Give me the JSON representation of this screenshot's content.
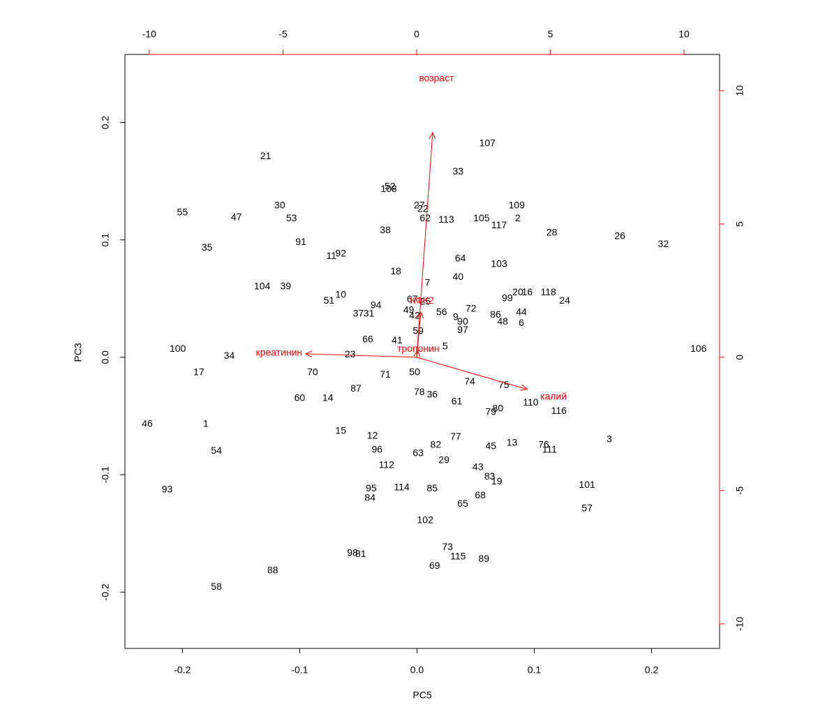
{
  "chart_data": {
    "type": "biplot",
    "xlabel": "PC5",
    "ylabel": "PC3",
    "xlim": [
      -0.249,
      0.258
    ],
    "ylim": [
      -0.248,
      0.258
    ],
    "xticks": [
      -0.2,
      -0.1,
      {
        "value": 0,
        "label": "0.0"
      },
      0.1,
      0.2
    ],
    "yticks": [
      -0.2,
      -0.1,
      {
        "value": 0,
        "label": "0.0"
      },
      0.1,
      0.2
    ],
    "x2lim": [
      -10.91,
      11.33
    ],
    "y2lim": [
      -10.92,
      11.36
    ],
    "x2ticks": [
      -10,
      -5,
      0,
      5,
      10
    ],
    "y2ticks": [
      -10,
      -5,
      0,
      5,
      10
    ],
    "point_color": "#000000",
    "loading_color": "#ff0000",
    "points": {
      "labels": [
        21,
        107,
        33,
        52,
        108,
        27,
        22,
        109,
        55,
        47,
        30,
        53,
        62,
        113,
        105,
        2,
        117,
        28,
        26,
        32,
        38,
        91,
        35,
        11,
        92,
        64,
        103,
        18,
        40,
        7,
        104,
        39,
        20,
        16,
        118,
        99,
        24,
        10,
        51,
        67,
        25,
        94,
        72,
        49,
        37,
        31,
        56,
        44,
        86,
        42,
        9,
        90,
        48,
        6,
        97,
        59,
        66,
        41,
        5,
        106,
        100,
        34,
        23,
        17,
        70,
        71,
        50,
        74,
        75,
        87,
        78,
        36,
        60,
        14,
        61,
        110,
        80,
        79,
        116,
        46,
        1,
        15,
        12,
        77,
        3,
        13,
        82,
        45,
        76,
        111,
        54,
        96,
        63,
        29,
        112,
        43,
        83,
        19,
        101,
        93,
        114,
        95,
        85,
        68,
        84,
        65,
        57,
        102,
        73,
        98,
        81,
        115,
        89,
        69,
        88,
        58
      ],
      "x": [
        -0.129,
        0.06,
        0.035,
        -0.023,
        -0.024,
        0.002,
        0.005,
        0.085,
        -0.2,
        -0.154,
        -0.117,
        -0.107,
        0.007,
        0.025,
        0.055,
        0.086,
        0.07,
        0.115,
        0.173,
        0.21,
        -0.027,
        -0.099,
        -0.179,
        -0.073,
        -0.065,
        0.037,
        0.07,
        -0.018,
        0.035,
        0.009,
        -0.132,
        -0.112,
        0.086,
        0.094,
        0.112,
        0.077,
        0.126,
        -0.065,
        -0.075,
        -0.004,
        0.007,
        -0.035,
        0.046,
        -0.007,
        -0.05,
        -0.041,
        0.021,
        0.089,
        0.067,
        -0.002,
        0.033,
        0.039,
        0.073,
        0.089,
        0.039,
        0.001,
        -0.042,
        -0.017,
        0.024,
        0.24,
        -0.204,
        -0.16,
        -0.057,
        -0.186,
        -0.089,
        -0.027,
        -0.002,
        0.045,
        0.074,
        -0.052,
        0.002,
        0.013,
        -0.1,
        -0.076,
        0.034,
        0.097,
        0.069,
        0.063,
        0.121,
        -0.23,
        -0.18,
        -0.065,
        -0.038,
        0.033,
        0.164,
        0.081,
        0.016,
        0.063,
        0.108,
        0.113,
        -0.171,
        -0.034,
        0.001,
        0.023,
        -0.026,
        0.052,
        0.062,
        0.068,
        0.145,
        -0.213,
        -0.013,
        -0.039,
        0.013,
        0.054,
        -0.04,
        0.039,
        0.145,
        0.007,
        0.026,
        -0.055,
        -0.048,
        0.035,
        0.057,
        0.015,
        -0.123,
        -0.171
      ],
      "y": [
        0.171,
        0.182,
        0.158,
        0.145,
        0.143,
        0.129,
        0.126,
        0.129,
        0.123,
        0.119,
        0.129,
        0.118,
        0.118,
        0.117,
        0.118,
        0.118,
        0.112,
        0.106,
        0.103,
        0.096,
        0.108,
        0.098,
        0.093,
        0.086,
        0.088,
        0.084,
        0.079,
        0.073,
        0.068,
        0.063,
        0.06,
        0.06,
        0.055,
        0.055,
        0.055,
        0.05,
        0.048,
        0.053,
        0.048,
        0.049,
        0.047,
        0.044,
        0.041,
        0.04,
        0.037,
        0.037,
        0.038,
        0.038,
        0.036,
        0.035,
        0.034,
        0.03,
        0.03,
        0.029,
        0.023,
        0.022,
        0.015,
        0.014,
        0.009,
        0.007,
        0.007,
        0.001,
        0.002,
        -0.013,
        -0.013,
        -0.015,
        -0.013,
        -0.021,
        -0.024,
        -0.027,
        -0.03,
        -0.032,
        -0.035,
        -0.035,
        -0.038,
        -0.039,
        -0.044,
        -0.047,
        -0.046,
        -0.057,
        -0.057,
        -0.063,
        -0.067,
        -0.068,
        -0.07,
        -0.073,
        -0.075,
        -0.076,
        -0.075,
        -0.079,
        -0.08,
        -0.079,
        -0.082,
        -0.088,
        -0.092,
        -0.094,
        -0.102,
        -0.106,
        -0.109,
        -0.113,
        -0.111,
        -0.112,
        -0.112,
        -0.118,
        -0.12,
        -0.125,
        -0.129,
        -0.139,
        -0.162,
        -0.167,
        -0.168,
        -0.17,
        -0.172,
        -0.178,
        -0.182,
        -0.196
      ]
    },
    "loadings": [
      {
        "name": "возраст",
        "x": 0.6,
        "y": 8.43
      },
      {
        "name": "креатинин",
        "x": -4.15,
        "y": 0.13
      },
      {
        "name": "калий",
        "x": 4.13,
        "y": -1.2
      },
      {
        "name": "тропонин",
        "x": 0.05,
        "y": 0.25
      },
      {
        "name": "КФК2",
        "x": 0.16,
        "y": 1.7
      }
    ]
  }
}
